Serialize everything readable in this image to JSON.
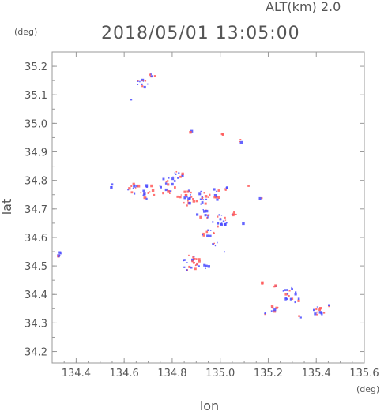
{
  "header": {
    "altitude": "ALT(km)  2.0",
    "timestamp": "2018/05/01 13:05:00"
  },
  "chart_data": {
    "type": "scatter",
    "xlabel": "lon",
    "ylabel": "lat",
    "x_unit": "(deg)",
    "y_unit": "(deg)",
    "xlim": [
      134.3,
      135.6
    ],
    "ylim": [
      34.16,
      35.25
    ],
    "xticks": [
      134.4,
      134.6,
      134.8,
      135.0,
      135.2,
      135.4,
      135.6
    ],
    "yticks": [
      34.2,
      34.3,
      34.4,
      34.5,
      34.6,
      34.7,
      34.8,
      34.9,
      35.0,
      35.1,
      35.2
    ],
    "xtick_labels": [
      "134.4",
      "134.6",
      "134.8",
      "135.0",
      "135.2",
      "135.4",
      "135.6"
    ],
    "ytick_labels": [
      "34.2",
      "34.3",
      "34.4",
      "34.5",
      "34.6",
      "34.7",
      "34.8",
      "34.9",
      "35.0",
      "35.1",
      "35.2"
    ],
    "grid": false,
    "colors": {
      "positive": "#ff5a5a",
      "negative": "#4a4aff",
      "axis": "#888888"
    },
    "clusters": [
      {
        "lon": 134.33,
        "lat": 34.54,
        "r": 0.008,
        "n": 6
      },
      {
        "lon": 134.68,
        "lat": 35.14,
        "r": 0.02,
        "n": 12
      },
      {
        "lon": 134.72,
        "lat": 35.17,
        "r": 0.01,
        "n": 5
      },
      {
        "lon": 134.63,
        "lat": 35.08,
        "r": 0.004,
        "n": 1
      },
      {
        "lon": 134.88,
        "lat": 34.97,
        "r": 0.004,
        "n": 2
      },
      {
        "lon": 135.01,
        "lat": 34.96,
        "r": 0.004,
        "n": 2
      },
      {
        "lon": 135.09,
        "lat": 34.94,
        "r": 0.008,
        "n": 3
      },
      {
        "lon": 134.55,
        "lat": 34.78,
        "r": 0.008,
        "n": 3
      },
      {
        "lon": 134.64,
        "lat": 34.77,
        "r": 0.02,
        "n": 12
      },
      {
        "lon": 134.7,
        "lat": 34.76,
        "r": 0.025,
        "n": 16
      },
      {
        "lon": 134.78,
        "lat": 34.78,
        "r": 0.03,
        "n": 18
      },
      {
        "lon": 134.82,
        "lat": 34.82,
        "r": 0.02,
        "n": 12
      },
      {
        "lon": 134.86,
        "lat": 34.74,
        "r": 0.03,
        "n": 22
      },
      {
        "lon": 134.93,
        "lat": 34.74,
        "r": 0.025,
        "n": 18
      },
      {
        "lon": 134.98,
        "lat": 34.75,
        "r": 0.02,
        "n": 10
      },
      {
        "lon": 135.03,
        "lat": 34.77,
        "r": 0.01,
        "n": 4
      },
      {
        "lon": 134.93,
        "lat": 34.68,
        "r": 0.02,
        "n": 12
      },
      {
        "lon": 135.0,
        "lat": 34.66,
        "r": 0.025,
        "n": 18
      },
      {
        "lon": 135.06,
        "lat": 34.68,
        "r": 0.01,
        "n": 5
      },
      {
        "lon": 134.95,
        "lat": 34.61,
        "r": 0.02,
        "n": 10
      },
      {
        "lon": 134.98,
        "lat": 34.58,
        "r": 0.01,
        "n": 4
      },
      {
        "lon": 134.88,
        "lat": 34.51,
        "r": 0.03,
        "n": 28
      },
      {
        "lon": 134.94,
        "lat": 34.5,
        "r": 0.01,
        "n": 4
      },
      {
        "lon": 135.02,
        "lat": 34.55,
        "r": 0.004,
        "n": 2
      },
      {
        "lon": 135.1,
        "lat": 34.65,
        "r": 0.004,
        "n": 1
      },
      {
        "lon": 135.17,
        "lat": 34.74,
        "r": 0.006,
        "n": 2
      },
      {
        "lon": 135.12,
        "lat": 34.78,
        "r": 0.004,
        "n": 1
      },
      {
        "lon": 135.17,
        "lat": 34.44,
        "r": 0.005,
        "n": 2
      },
      {
        "lon": 135.23,
        "lat": 34.43,
        "r": 0.006,
        "n": 3
      },
      {
        "lon": 135.29,
        "lat": 34.4,
        "r": 0.025,
        "n": 16
      },
      {
        "lon": 135.32,
        "lat": 34.38,
        "r": 0.01,
        "n": 4
      },
      {
        "lon": 135.23,
        "lat": 34.35,
        "r": 0.015,
        "n": 8
      },
      {
        "lon": 135.19,
        "lat": 34.33,
        "r": 0.006,
        "n": 3
      },
      {
        "lon": 135.33,
        "lat": 34.32,
        "r": 0.005,
        "n": 2
      },
      {
        "lon": 135.41,
        "lat": 34.34,
        "r": 0.02,
        "n": 12
      },
      {
        "lon": 135.45,
        "lat": 34.36,
        "r": 0.006,
        "n": 2
      }
    ]
  }
}
